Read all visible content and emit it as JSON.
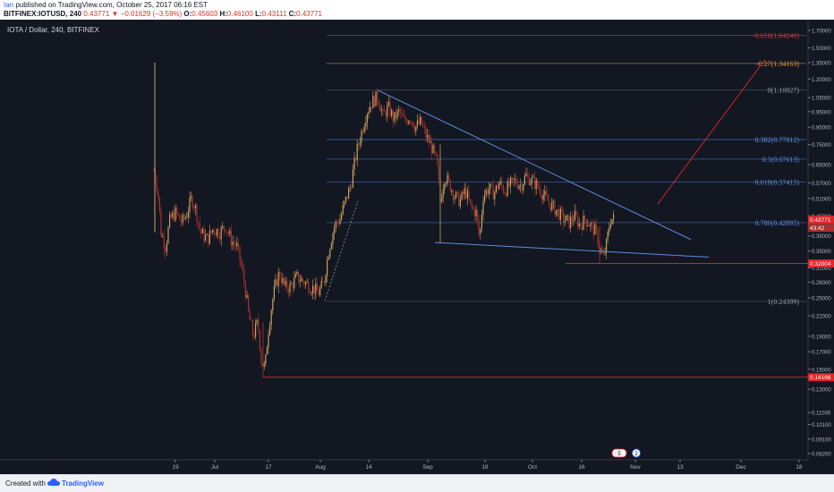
{
  "header": {
    "author": "Ian",
    "published_text": " published on TradingView.com, October 25, 2017 06:16 EST",
    "symbol": "BITFINEX:IOTUSD, 240",
    "last": "0.43771",
    "change_arrow": "▼",
    "change": "−0.01629 (−3.59%)",
    "o_label": "O:",
    "o_value": "0.45603",
    "h_label": "H:",
    "h_value": "0.46100",
    "l_label": "L:",
    "l_value": "0.43111",
    "c_label": "C:",
    "c_value": "0.43771"
  },
  "chart_title": "IOTA / Dollar, 240, BITFINEX",
  "footer": {
    "created": "Created with",
    "brand": "TradingView"
  },
  "colors": {
    "background": "#131722",
    "candle_up": "#c9a45c",
    "candle_down": "#a8322e",
    "fib_blue": "#5b8fd9",
    "fib_orange": "#e59a2e",
    "fib_red": "#d8373a",
    "trend_line": "#5b8fd9",
    "support": "#e0262a"
  },
  "chart_data": {
    "type": "candlestick",
    "pair": "IOTA / Dollar",
    "interval": "240",
    "exchange": "BITFINEX",
    "y_scale": "log",
    "y_ticks": [
      "1.70000",
      "1.50000",
      "1.35000",
      "1.20000",
      "1.05000",
      "0.95000",
      "0.85000",
      "0.75000",
      "0.65000",
      "0.57000",
      "0.51000",
      "0.45000",
      "0.39000",
      "0.35000",
      "0.31000",
      "0.28000",
      "0.25000",
      "0.22000",
      "0.19000",
      "0.17000",
      "0.15000",
      "0.13000",
      "0.11000",
      "0.10100",
      "0.09100",
      "0.08200"
    ],
    "x_ticks": [
      "19",
      "Jul",
      "17",
      "Aug",
      "14",
      "Sep",
      "18",
      "Oct",
      "16",
      "Nov",
      "13",
      "Dec",
      "18"
    ],
    "fib_levels": [
      {
        "label": "-0.618(1.64240)",
        "price": 1.6424,
        "color": "red"
      },
      {
        "label": "-0.27(1.34163)",
        "price": 1.34163,
        "color": "orange"
      },
      {
        "label": "0(1.10827)",
        "price": 1.10827,
        "color": "gray"
      },
      {
        "label": "0.382(0.77812)",
        "price": 0.77812,
        "color": "blue"
      },
      {
        "label": "0.5(0.67613)",
        "price": 0.67613,
        "color": "blue"
      },
      {
        "label": "0.618(0.57415)",
        "price": 0.57415,
        "color": "blue"
      },
      {
        "label": "0.786(0.42895)",
        "price": 0.42895,
        "color": "blue"
      },
      {
        "label": "1(0.24399)",
        "price": 0.24399,
        "color": "gray"
      }
    ],
    "price_tags": [
      {
        "text": "0.43771",
        "price": 0.43771
      },
      {
        "text": "43:42",
        "price": 0.41
      },
      {
        "text": "0.32004",
        "price": 0.32004
      },
      {
        "text": "0.14166",
        "price": 0.14166
      }
    ],
    "horizontal_lines": [
      0.32004,
      0.14166
    ],
    "trend_lines": [
      {
        "from": [
          0.5,
          1.108
        ],
        "to": [
          0.86,
          0.38
        ]
      },
      {
        "from": [
          0.5,
          0.37
        ],
        "to": [
          0.88,
          0.33
        ]
      }
    ],
    "badge": {
      "a": "5",
      "b": "2"
    }
  }
}
